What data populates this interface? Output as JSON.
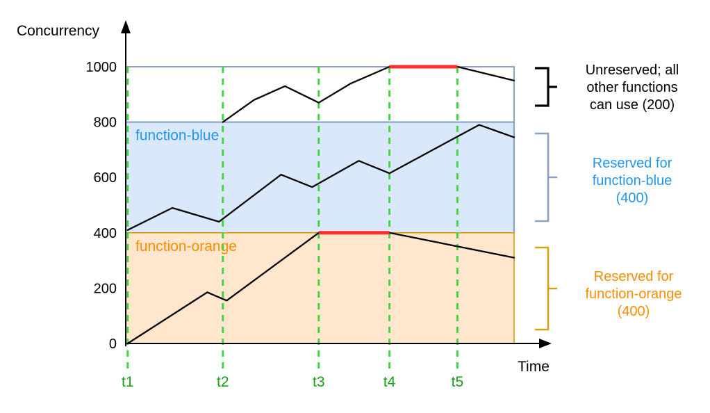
{
  "chart_data": {
    "type": "line",
    "title": "",
    "ylabel": "Concurrency",
    "xlabel": "Time",
    "ylim": [
      0,
      1000
    ],
    "y_ticks": [
      0,
      200,
      400,
      600,
      800,
      1000
    ],
    "x_domain": [
      0,
      1
    ],
    "grid": false,
    "legend": false,
    "time_markers": [
      {
        "label": "t1",
        "x": 0.005
      },
      {
        "label": "t2",
        "x": 0.25
      },
      {
        "label": "t3",
        "x": 0.497
      },
      {
        "label": "t4",
        "x": 0.679
      },
      {
        "label": "t5",
        "x": 0.854
      }
    ],
    "bands": [
      {
        "name": "unreserved",
        "from": 800,
        "to": 1000,
        "fill": "#ffffff",
        "stroke": "#6c8ebf",
        "label": "",
        "label_color": ""
      },
      {
        "name": "function-blue",
        "from": 400,
        "to": 800,
        "fill": "#dae8fc",
        "stroke": "#6c8ebf",
        "label": "function-blue",
        "label_color": "#2196f3"
      },
      {
        "name": "function-orange",
        "from": 0,
        "to": 400,
        "fill": "#ffe6cc",
        "stroke": "#d79b00",
        "label": "function-orange",
        "label_color": "#ff8c00"
      }
    ],
    "series": [
      {
        "name": "other-functions-usage",
        "color": "#000000",
        "points": [
          [
            0.25,
            800
          ],
          [
            0.33,
            880
          ],
          [
            0.41,
            930
          ],
          [
            0.497,
            870
          ],
          [
            0.58,
            940
          ],
          [
            0.679,
            1000
          ],
          [
            0.854,
            1000
          ],
          [
            1.0,
            950
          ]
        ]
      },
      {
        "name": "function-blue-usage",
        "color": "#000000",
        "points": [
          [
            0.005,
            410
          ],
          [
            0.12,
            490
          ],
          [
            0.24,
            440
          ],
          [
            0.4,
            610
          ],
          [
            0.48,
            565
          ],
          [
            0.6,
            660
          ],
          [
            0.679,
            615
          ],
          [
            0.91,
            790
          ],
          [
            1.0,
            745
          ]
        ]
      },
      {
        "name": "function-orange-usage",
        "color": "#000000",
        "points": [
          [
            0.005,
            0
          ],
          [
            0.21,
            185
          ],
          [
            0.26,
            155
          ],
          [
            0.497,
            400
          ],
          [
            0.679,
            400
          ],
          [
            1.0,
            310
          ]
        ]
      }
    ],
    "limit_segments": [
      {
        "name": "at-1000-limit",
        "value": 1000,
        "from": 0.679,
        "to": 0.854,
        "color": "#ff2e2e"
      },
      {
        "name": "at-400-limit",
        "value": 400,
        "from": 0.497,
        "to": 0.679,
        "color": "#ff2e2e"
      }
    ]
  },
  "colors": {
    "axis": "#000000",
    "time_marker_line": "#42d742",
    "time_marker_label": "#17a017",
    "tick_label": "#000000"
  },
  "annotations": [
    {
      "name": "unreserved-note",
      "text": "Unreserved; all\nother functions\ncan use (200)",
      "color": "#000000",
      "bracket_color": "#000000"
    },
    {
      "name": "reserved-blue-note",
      "text": "Reserved for\nfunction-blue\n(400)",
      "color": "#2196f3",
      "bracket_color": "#8ba1c2"
    },
    {
      "name": "reserved-orange-note",
      "text": "Reserved for\nfunction-orange\n(400)",
      "color": "#ff8c00",
      "bracket_color": "#d4a017"
    }
  ]
}
